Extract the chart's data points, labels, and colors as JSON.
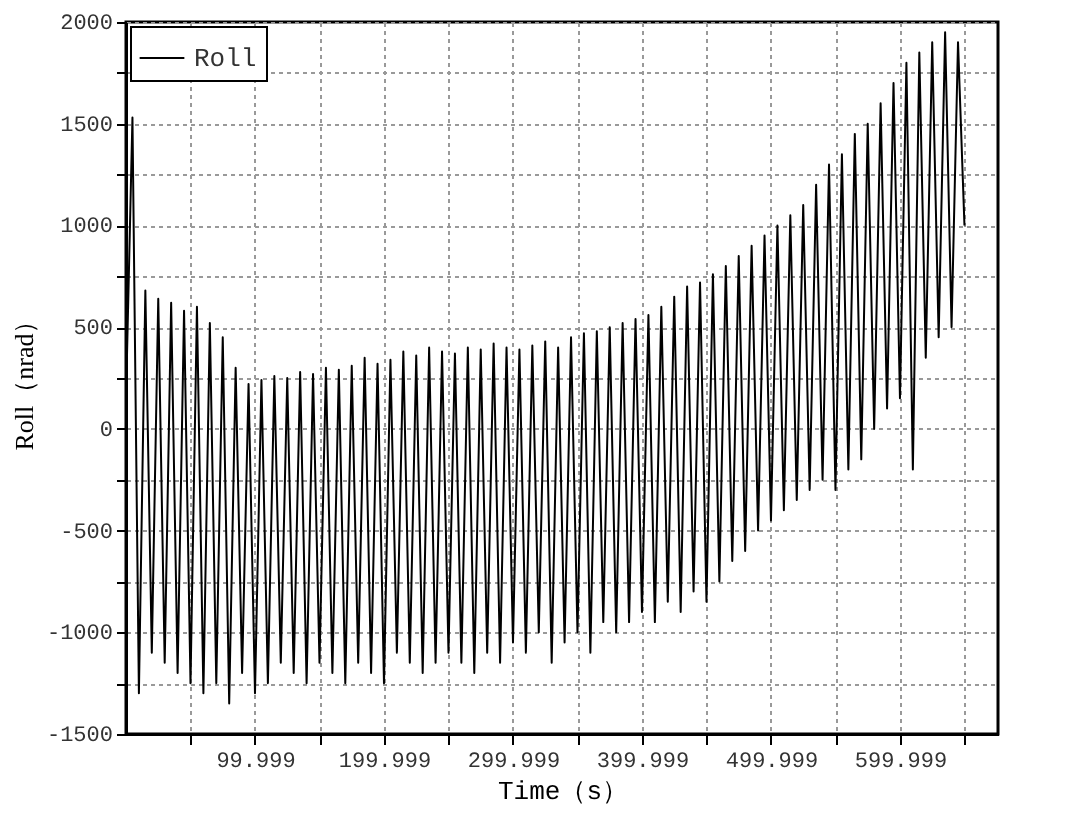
{
  "chart_data": {
    "type": "line",
    "xlabel": "Time（s）",
    "ylabel": "Roll（nrad）",
    "x": [
      0,
      5,
      10,
      15,
      20,
      25,
      30,
      35,
      40,
      45,
      50,
      55,
      60,
      65,
      70,
      75,
      80,
      85,
      90,
      95,
      100,
      105,
      110,
      115,
      120,
      125,
      130,
      135,
      140,
      145,
      150,
      155,
      160,
      165,
      170,
      175,
      180,
      185,
      190,
      195,
      200,
      205,
      210,
      215,
      220,
      225,
      230,
      235,
      240,
      245,
      250,
      255,
      260,
      265,
      270,
      275,
      280,
      285,
      290,
      295,
      300,
      305,
      310,
      315,
      320,
      325,
      330,
      335,
      340,
      345,
      350,
      355,
      360,
      365,
      370,
      375,
      380,
      385,
      390,
      395,
      400,
      405,
      410,
      415,
      420,
      425,
      430,
      435,
      440,
      445,
      450,
      455,
      460,
      465,
      470,
      475,
      480,
      485,
      490,
      495,
      500,
      505,
      510,
      515,
      520,
      525,
      530,
      535,
      540,
      545,
      550,
      555,
      560,
      565,
      570,
      575,
      580,
      585,
      590,
      595,
      600,
      605,
      610,
      615,
      620,
      625,
      630,
      635,
      640,
      645,
      650
    ],
    "series": [
      {
        "name": "Roll",
        "color": "#000000",
        "values": [
          150,
          1530,
          -1300,
          680,
          -1100,
          640,
          -1150,
          620,
          -1200,
          580,
          -1250,
          600,
          -1300,
          520,
          -1250,
          450,
          -1350,
          300,
          -1200,
          220,
          -1300,
          240,
          -1250,
          260,
          -1150,
          250,
          -1200,
          280,
          -1250,
          270,
          -1150,
          300,
          -1200,
          290,
          -1250,
          310,
          -1150,
          350,
          -1200,
          320,
          -1250,
          340,
          -1100,
          380,
          -1150,
          360,
          -1200,
          400,
          -1150,
          380,
          -1100,
          370,
          -1150,
          400,
          -1200,
          390,
          -1100,
          420,
          -1150,
          400,
          -1050,
          390,
          -1100,
          410,
          -1000,
          430,
          -1150,
          400,
          -1050,
          450,
          -1000,
          470,
          -1100,
          480,
          -950,
          500,
          -1000,
          520,
          -950,
          540,
          -900,
          560,
          -950,
          600,
          -850,
          650,
          -900,
          700,
          -800,
          720,
          -850,
          760,
          -750,
          800,
          -650,
          850,
          -600,
          900,
          -500,
          950,
          -450,
          1000,
          -400,
          1050,
          -350,
          1100,
          -300,
          1200,
          -250,
          1300,
          -300,
          1350,
          -200,
          1450,
          -150,
          1500,
          0,
          1600,
          100,
          1700,
          150,
          1800,
          -200,
          1850,
          350,
          1900,
          450,
          1950,
          500,
          1900,
          1000
        ]
      }
    ],
    "xlim": [
      0,
      676
    ],
    "xticks": [
      {
        "value": 49.999,
        "label": null
      },
      99.999,
      {
        "value": 149.999,
        "label": null
      },
      199.999,
      {
        "value": 249.999,
        "label": null
      },
      299.999,
      {
        "value": 349.999,
        "label": null
      },
      399.999,
      {
        "value": 449.999,
        "label": null
      },
      499.999,
      {
        "value": 549.999,
        "label": null
      },
      599.999,
      {
        "value": 649.999,
        "label": null
      }
    ],
    "ylim": [
      -1500,
      2000
    ],
    "yticks": [
      -1500,
      {
        "value": -1250,
        "label": null
      },
      -1000,
      {
        "value": -750,
        "label": null
      },
      -500,
      {
        "value": -250,
        "label": null
      },
      0,
      {
        "value": 250,
        "label": null
      },
      500,
      {
        "value": 750,
        "label": null
      },
      1000,
      {
        "value": 1250,
        "label": null
      },
      1500,
      {
        "value": 1750,
        "label": null
      },
      2000
    ],
    "grid": true,
    "legend": "top left",
    "marker": "none",
    "line_style": "solid"
  }
}
